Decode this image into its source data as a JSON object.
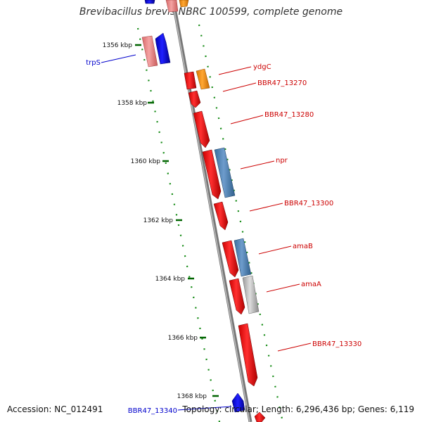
{
  "title": "Brevibacillus brevis NBRC 100599, complete genome",
  "accession": "Accession: NC_012491",
  "topology": "Topology: circular; Length: 6,296,436 bp; Genes: 6,119",
  "scale_labels": [
    "1356 kbp",
    "1358 kbp",
    "1360 kbp",
    "1362 kbp",
    "1364 kbp",
    "1366 kbp",
    "1368 kbp"
  ],
  "gene_labels": [
    {
      "text": "trpS",
      "side": "left",
      "color": "#0000cc"
    },
    {
      "text": "ydgC",
      "side": "right",
      "color": "#cc0000"
    },
    {
      "text": "BBR47_13270",
      "side": "right",
      "color": "#cc0000"
    },
    {
      "text": "BBR47_13280",
      "side": "right",
      "color": "#cc0000"
    },
    {
      "text": "npr",
      "side": "right",
      "color": "#cc0000"
    },
    {
      "text": "BBR47_13300",
      "side": "right",
      "color": "#cc0000"
    },
    {
      "text": "amaB",
      "side": "right",
      "color": "#cc0000"
    },
    {
      "text": "amaA",
      "side": "right",
      "color": "#cc0000"
    },
    {
      "text": "BBR47_13330",
      "side": "right",
      "color": "#cc0000"
    },
    {
      "text": "BBR47_13340",
      "side": "left",
      "color": "#0000cc"
    }
  ],
  "legend_colors": {
    "forward_cds": "#ff0000",
    "reverse_cds": "#0000ff",
    "forward_rna": "#4682b4",
    "orange_feature": "#ff8c00",
    "pseudo_feature": "#bbbbbb",
    "axis_ticks": "#006400"
  }
}
